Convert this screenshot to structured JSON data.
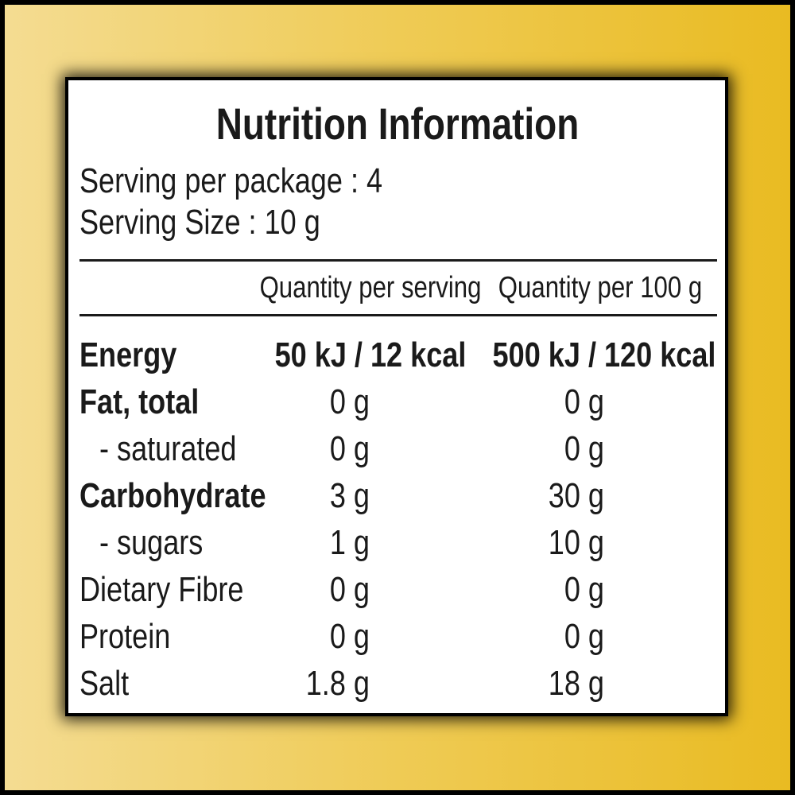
{
  "title": "Nutrition Information",
  "serving_info": [
    "Serving per package : 4",
    "Serving Size : 10 g"
  ],
  "table": {
    "header": [
      "Quantity per serving",
      "Quantity per 100 g"
    ],
    "rows": [
      [
        "Energy",
        "50 kJ / 12 kcal",
        "500 kJ / 120 kcal"
      ],
      [
        "Fat, total",
        "0 g",
        "0 g"
      ],
      [
        "- saturated",
        "0 g",
        "0 g"
      ],
      [
        "Carbohydrate",
        "3 g",
        "30 g"
      ],
      [
        "- sugars",
        "1 g",
        "10 g"
      ],
      [
        "Dietary Fibre",
        "0 g",
        "0 g"
      ],
      [
        "Protein",
        "0 g",
        "0 g"
      ],
      [
        "Salt",
        "1.8 g",
        "18 g"
      ]
    ]
  }
}
